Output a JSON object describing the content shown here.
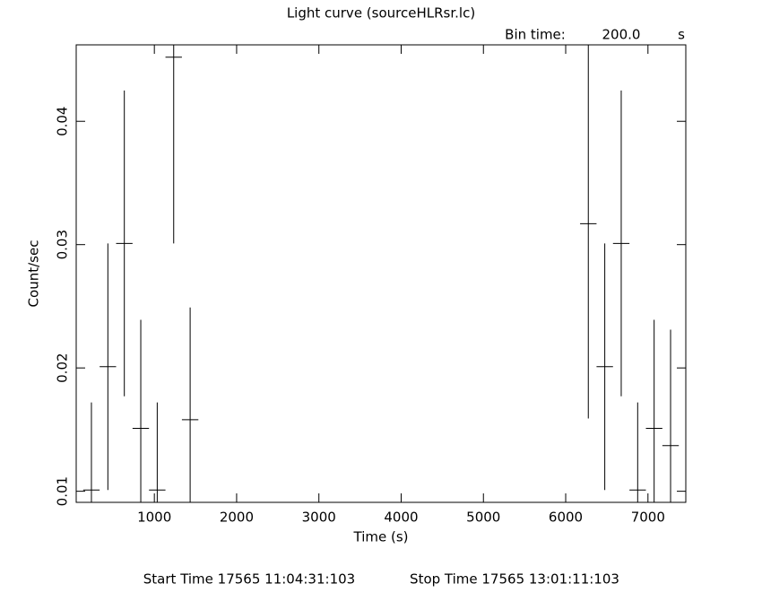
{
  "chart_data": {
    "type": "errorbar",
    "title": "Light curve (sourceHLRsr.lc)",
    "bin_time_label": "Bin time:",
    "bin_time": "200.0",
    "bin_time_unit": "s",
    "x_label": "Time (s)",
    "y_label": "Count/sec",
    "start_time": "Start Time 17565 11:04:31:103",
    "stop_time": "Stop Time 17565 13:01:11:103",
    "x": [
      235,
      435,
      635,
      835,
      1035,
      1235,
      1435,
      6275,
      6475,
      6675,
      6875,
      7075,
      7275
    ],
    "values": [
      0.0101,
      0.0201,
      0.0301,
      0.0151,
      0.0101,
      0.0452,
      0.0158,
      0.0317,
      0.0201,
      0.0301,
      0.0101,
      0.0151,
      0.0137
    ],
    "errors": [
      0.0071,
      0.01,
      0.0124,
      0.0088,
      0.0071,
      0.0151,
      0.0091,
      0.0158,
      0.01,
      0.0124,
      0.0071,
      0.0088,
      0.0094
    ],
    "color": "#000000",
    "xlim": [
      50,
      7460
    ],
    "ylim": [
      0.0091,
      0.0462
    ],
    "xticks": [
      1000,
      2000,
      3000,
      4000,
      5000,
      6000,
      7000
    ],
    "yticks": [
      0.01,
      0.02,
      0.03,
      0.04
    ]
  }
}
